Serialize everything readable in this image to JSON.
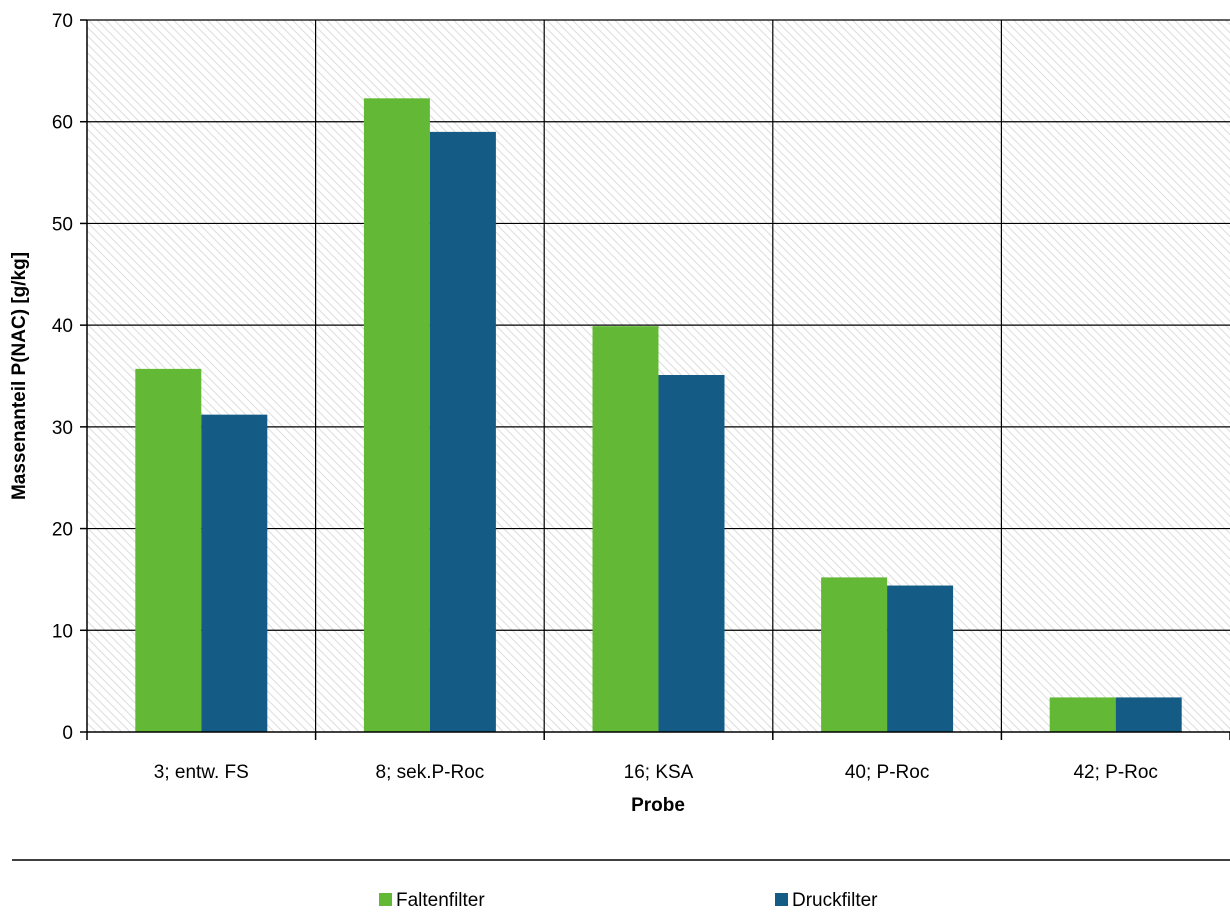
{
  "chart_data": {
    "type": "bar",
    "xlabel": "Probe",
    "ylabel": "Massenanteil  P(NAC) [g/kg]",
    "categories": [
      "3; entw. FS",
      "8; sek.P-Roc",
      "16; KSA",
      "40; P-Roc",
      "42; P-Roc"
    ],
    "series": [
      {
        "name": "Faltenfilter",
        "values": [
          35.7,
          62.3,
          39.9,
          15.2,
          3.4
        ],
        "color": "#63b935"
      },
      {
        "name": "Druckfilter",
        "values": [
          31.2,
          59.0,
          35.1,
          14.4,
          3.4
        ],
        "color": "#145c85"
      }
    ],
    "ylim": [
      0,
      70
    ],
    "yticks": [
      0,
      10,
      20,
      30,
      40,
      50,
      60,
      70
    ],
    "grid": true,
    "legend": "bottom",
    "background": "diagonal-hatch-light-gray"
  }
}
